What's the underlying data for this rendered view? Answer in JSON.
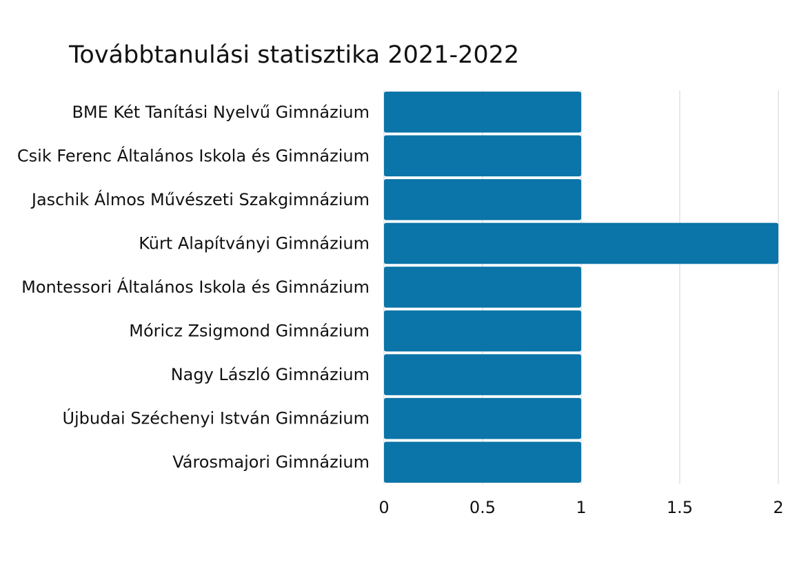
{
  "chart_data": {
    "type": "bar",
    "orientation": "horizontal",
    "title": "Továbbtanulási statisztika 2021-2022",
    "categories": [
      "BME Két Tanítási Nyelvű Gimnázium",
      "Csik Ferenc Általános Iskola és Gimnázium",
      "Jaschik Álmos Művészeti Szakgimnázium",
      "Kürt Alapítványi Gimnázium",
      "Montessori Általános Iskola és Gimnázium",
      "Móricz Zsigmond Gimnázium",
      "Nagy László Gimnázium",
      "Újbudai Széchenyi István Gimnázium",
      "Városmajori Gimnázium"
    ],
    "values": [
      1,
      1,
      1,
      2,
      1,
      1,
      1,
      1,
      1
    ],
    "xlim": [
      0,
      2
    ],
    "xticks": [
      "0",
      "0.5",
      "1",
      "1.5",
      "2"
    ],
    "xtick_values": [
      0,
      0.5,
      1,
      1.5,
      2
    ],
    "grid": true,
    "legend": "none",
    "bar_color": "#0b74a8",
    "grid_color": "#d3d3d3"
  }
}
